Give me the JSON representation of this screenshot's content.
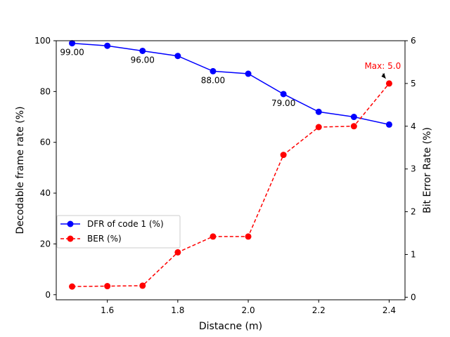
{
  "chart_data": {
    "type": "line",
    "title": "",
    "xlabel": "Distacne (m)",
    "ylabel_left": "Decodable frame rate (%)",
    "ylabel_right": "Bit Error Rate (%)",
    "xlim": [
      1.455,
      2.445
    ],
    "ylim_left": [
      -2,
      100
    ],
    "ylim_right": [
      -0.06,
      6
    ],
    "x_ticks": [
      "1.6",
      "1.8",
      "2.0",
      "2.2",
      "2.4"
    ],
    "y_left_ticks": [
      "0",
      "20",
      "40",
      "60",
      "80",
      "100"
    ],
    "y_right_ticks": [
      "0",
      "1",
      "2",
      "3",
      "4",
      "5",
      "6"
    ],
    "grid": false,
    "legend_position": "center-left",
    "x": [
      1.5,
      1.6,
      1.7,
      1.8,
      1.9,
      2.0,
      2.1,
      2.2,
      2.3,
      2.4
    ],
    "series": [
      {
        "name": "DFR of code 1 (%)",
        "axis": "left",
        "color": "#0000ff",
        "linestyle": "solid",
        "values": [
          99,
          98,
          96,
          94,
          88,
          87,
          79,
          72,
          70,
          67
        ]
      },
      {
        "name": "BER (%)",
        "axis": "right",
        "color": "#ff0000",
        "linestyle": "dashed",
        "values": [
          0.25,
          0.26,
          0.27,
          1.05,
          1.42,
          1.42,
          3.33,
          3.98,
          4.0,
          5.0
        ]
      }
    ],
    "point_labels": [
      {
        "x": 1.5,
        "y": 99,
        "text": "99.00"
      },
      {
        "x": 1.7,
        "y": 96,
        "text": "96.00"
      },
      {
        "x": 1.9,
        "y": 88,
        "text": "88.00"
      },
      {
        "x": 2.1,
        "y": 79,
        "text": "79.00"
      }
    ],
    "annotation": {
      "text": "Max: 5.0",
      "x": 2.4,
      "y": 5.0,
      "axis": "right",
      "color": "#ff0000"
    }
  }
}
